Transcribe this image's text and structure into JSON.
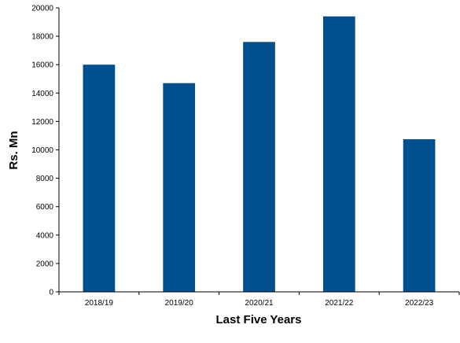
{
  "chart_data": {
    "type": "bar",
    "categories": [
      "2018/19",
      "2019/20",
      "2020/21",
      "2021/22",
      "2022/23"
    ],
    "values": [
      16000,
      14700,
      17600,
      19400,
      10750
    ],
    "xlabel": "Last Five Years",
    "ylabel": "Rs. Mn",
    "ylim": [
      0,
      20000
    ],
    "yticks": [
      0,
      2000,
      4000,
      6000,
      8000,
      10000,
      12000,
      14000,
      16000,
      18000,
      20000
    ],
    "grid": false,
    "legend": "none",
    "bar_color": "#00508f"
  }
}
